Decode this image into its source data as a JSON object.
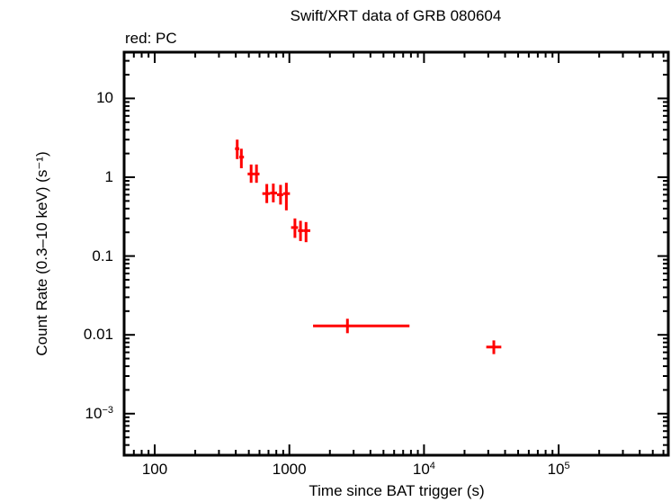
{
  "header": {
    "title": "Swift/XRT data of GRB 080604",
    "subtitle": "red: PC"
  },
  "axes": {
    "xlabel": "Time since BAT trigger (s)",
    "ylabel": "Count Rate (0.3–10 keV) (s⁻¹)",
    "xticks": [
      {
        "label": "100",
        "value": 100
      },
      {
        "label": "1000",
        "value": 1000
      },
      {
        "label": "10",
        "sup": "4",
        "value": 10000
      },
      {
        "label": "10",
        "sup": "5",
        "value": 100000
      }
    ],
    "yticks": [
      {
        "label": "10",
        "value": 10
      },
      {
        "label": "1",
        "value": 1
      },
      {
        "label": "0.1",
        "value": 0.1
      },
      {
        "label": "0.01",
        "value": 0.01
      },
      {
        "label": "10",
        "sup": "−3",
        "value": 0.001
      }
    ]
  },
  "colors": {
    "series_pc": "#ff0000",
    "axes": "#000000",
    "background": "#ffffff"
  },
  "chart_data": {
    "type": "scatter",
    "title": "Swift/XRT data of GRB 080604",
    "subtitle": "red: PC",
    "xlabel": "Time since BAT trigger (s)",
    "ylabel": "Count Rate (0.3–10 keV) (s^-1)",
    "xscale": "log",
    "yscale": "log",
    "xlim": [
      60,
      650000
    ],
    "ylim": [
      0.0003,
      35
    ],
    "grid": false,
    "legend": "text annotation top-left: red: PC",
    "series": [
      {
        "name": "PC",
        "color": "#ff0000",
        "points": [
          {
            "t": 410,
            "t_lo": 395,
            "t_hi": 425,
            "rate": 2.3,
            "rate_lo": 1.7,
            "rate_hi": 3.0
          },
          {
            "t": 440,
            "t_lo": 425,
            "t_hi": 460,
            "rate": 1.8,
            "rate_lo": 1.3,
            "rate_hi": 2.3
          },
          {
            "t": 520,
            "t_lo": 490,
            "t_hi": 545,
            "rate": 1.1,
            "rate_lo": 0.85,
            "rate_hi": 1.45
          },
          {
            "t": 570,
            "t_lo": 545,
            "t_hi": 600,
            "rate": 1.1,
            "rate_lo": 0.85,
            "rate_hi": 1.45
          },
          {
            "t": 680,
            "t_lo": 630,
            "t_hi": 720,
            "rate": 0.62,
            "rate_lo": 0.47,
            "rate_hi": 0.82
          },
          {
            "t": 760,
            "t_lo": 720,
            "t_hi": 810,
            "rate": 0.63,
            "rate_lo": 0.48,
            "rate_hi": 0.83
          },
          {
            "t": 860,
            "t_lo": 810,
            "t_hi": 900,
            "rate": 0.6,
            "rate_lo": 0.45,
            "rate_hi": 0.8
          },
          {
            "t": 950,
            "t_lo": 900,
            "t_hi": 1010,
            "rate": 0.62,
            "rate_lo": 0.38,
            "rate_hi": 0.85
          },
          {
            "t": 1100,
            "t_lo": 1030,
            "t_hi": 1160,
            "rate": 0.23,
            "rate_lo": 0.17,
            "rate_hi": 0.3
          },
          {
            "t": 1210,
            "t_lo": 1160,
            "t_hi": 1270,
            "rate": 0.21,
            "rate_lo": 0.155,
            "rate_hi": 0.28
          },
          {
            "t": 1330,
            "t_lo": 1270,
            "t_hi": 1430,
            "rate": 0.21,
            "rate_lo": 0.15,
            "rate_hi": 0.27
          },
          {
            "t": 2700,
            "t_lo": 1500,
            "t_hi": 7800,
            "rate": 0.013,
            "rate_lo": 0.0105,
            "rate_hi": 0.016
          },
          {
            "t": 33000,
            "t_lo": 29000,
            "t_hi": 37500,
            "rate": 0.007,
            "rate_lo": 0.0057,
            "rate_hi": 0.0085
          }
        ]
      }
    ]
  }
}
